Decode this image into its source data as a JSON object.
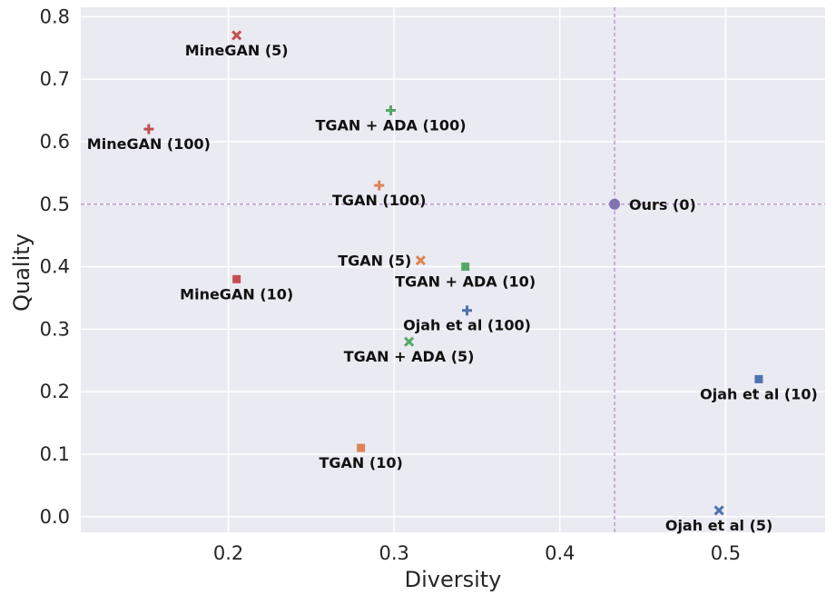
{
  "chart_data": {
    "type": "scatter",
    "title": "",
    "xlabel": "Diversity",
    "ylabel": "Quality",
    "xlim": [
      0.111,
      0.56
    ],
    "ylim": [
      -0.025,
      0.815
    ],
    "xticks": [
      0.2,
      0.3,
      0.4,
      0.5
    ],
    "yticks": [
      0.0,
      0.1,
      0.2,
      0.3,
      0.4,
      0.5,
      0.6,
      0.7,
      0.8
    ],
    "xtick_labels": [
      "0.2",
      "0.3",
      "0.4",
      "0.5"
    ],
    "ytick_labels": [
      "0.0",
      "0.1",
      "0.2",
      "0.3",
      "0.4",
      "0.5",
      "0.6",
      "0.7",
      "0.8"
    ],
    "grid": true,
    "reference_lines": {
      "x": 0.433,
      "y": 0.5,
      "color": "#b088c8"
    },
    "colors": {
      "background": "#eaeaf2",
      "grid": "#ffffff",
      "MineGAN": "#c44e52",
      "TGAN": "#dd8452",
      "TGAN + ADA": "#55a868",
      "Ojah et al": "#4c72b0",
      "Ours": "#8172b3"
    },
    "points": [
      {
        "label": "MineGAN (5)",
        "group": "MineGAN",
        "marker": "x",
        "x": 0.205,
        "y": 0.77,
        "label_pos": "below"
      },
      {
        "label": "MineGAN (100)",
        "group": "MineGAN",
        "marker": "plus",
        "x": 0.152,
        "y": 0.62,
        "label_pos": "below"
      },
      {
        "label": "MineGAN (10)",
        "group": "MineGAN",
        "marker": "square",
        "x": 0.205,
        "y": 0.38,
        "label_pos": "below"
      },
      {
        "label": "TGAN + ADA (100)",
        "group": "TGAN + ADA",
        "marker": "plus",
        "x": 0.298,
        "y": 0.65,
        "label_pos": "below"
      },
      {
        "label": "TGAN (100)",
        "group": "TGAN",
        "marker": "plus",
        "x": 0.291,
        "y": 0.53,
        "label_pos": "below"
      },
      {
        "label": "TGAN (5)",
        "group": "TGAN",
        "marker": "x",
        "x": 0.316,
        "y": 0.41,
        "label_pos": "left"
      },
      {
        "label": "TGAN + ADA (10)",
        "group": "TGAN + ADA",
        "marker": "square",
        "x": 0.343,
        "y": 0.4,
        "label_pos": "below"
      },
      {
        "label": "Ojah et al (100)",
        "group": "Ojah et al",
        "marker": "plus",
        "x": 0.344,
        "y": 0.33,
        "label_pos": "below"
      },
      {
        "label": "TGAN + ADA (5)",
        "group": "TGAN + ADA",
        "marker": "x",
        "x": 0.309,
        "y": 0.28,
        "label_pos": "below"
      },
      {
        "label": "TGAN (10)",
        "group": "TGAN",
        "marker": "square",
        "x": 0.28,
        "y": 0.11,
        "label_pos": "below"
      },
      {
        "label": "Ours (0)",
        "group": "Ours",
        "marker": "circle",
        "x": 0.433,
        "y": 0.5,
        "label_pos": "right"
      },
      {
        "label": "Ojah et al (10)",
        "group": "Ojah et al",
        "marker": "square",
        "x": 0.52,
        "y": 0.22,
        "label_pos": "below"
      },
      {
        "label": "Ojah et al (5)",
        "group": "Ojah et al",
        "marker": "x",
        "x": 0.496,
        "y": 0.01,
        "label_pos": "below"
      }
    ]
  }
}
